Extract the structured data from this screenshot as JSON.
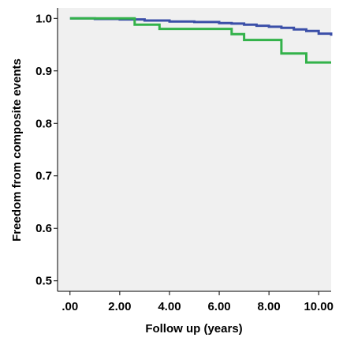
{
  "chart_data": {
    "type": "line",
    "title": "",
    "xlabel": "Follow up (years)",
    "ylabel": "Freedom from composite events",
    "xlim": [
      -0.5,
      10.5
    ],
    "ylim": [
      0.48,
      1.02
    ],
    "x_ticks": [
      0,
      2,
      4,
      6,
      8,
      10
    ],
    "x_tick_labels": [
      ".00",
      "2.00",
      "4.00",
      "6.00",
      "8.00",
      "10.00"
    ],
    "y_ticks": [
      0.5,
      0.6,
      0.7,
      0.8,
      0.9,
      1.0
    ],
    "y_tick_labels": [
      "0.5",
      "0.6",
      "0.7",
      "0.8",
      "0.9",
      "1.0"
    ],
    "grid": false,
    "step": true,
    "background_color": "#f0f0f0",
    "series": [
      {
        "color": "#3b4fa8",
        "x": [
          0,
          1,
          2,
          3,
          4,
          5,
          6,
          6.5,
          7,
          7.5,
          8,
          8.5,
          9,
          9.5,
          10,
          10.5
        ],
        "y": [
          1.0,
          0.999,
          0.998,
          0.996,
          0.994,
          0.993,
          0.991,
          0.99,
          0.988,
          0.986,
          0.984,
          0.982,
          0.979,
          0.976,
          0.971,
          0.967
        ]
      },
      {
        "color": "#33b24a",
        "x": [
          0,
          2.6,
          3.6,
          6.5,
          7.0,
          8.5,
          9.5,
          10.5
        ],
        "y": [
          1.0,
          0.988,
          0.98,
          0.97,
          0.959,
          0.933,
          0.916,
          0.916
        ]
      }
    ]
  }
}
